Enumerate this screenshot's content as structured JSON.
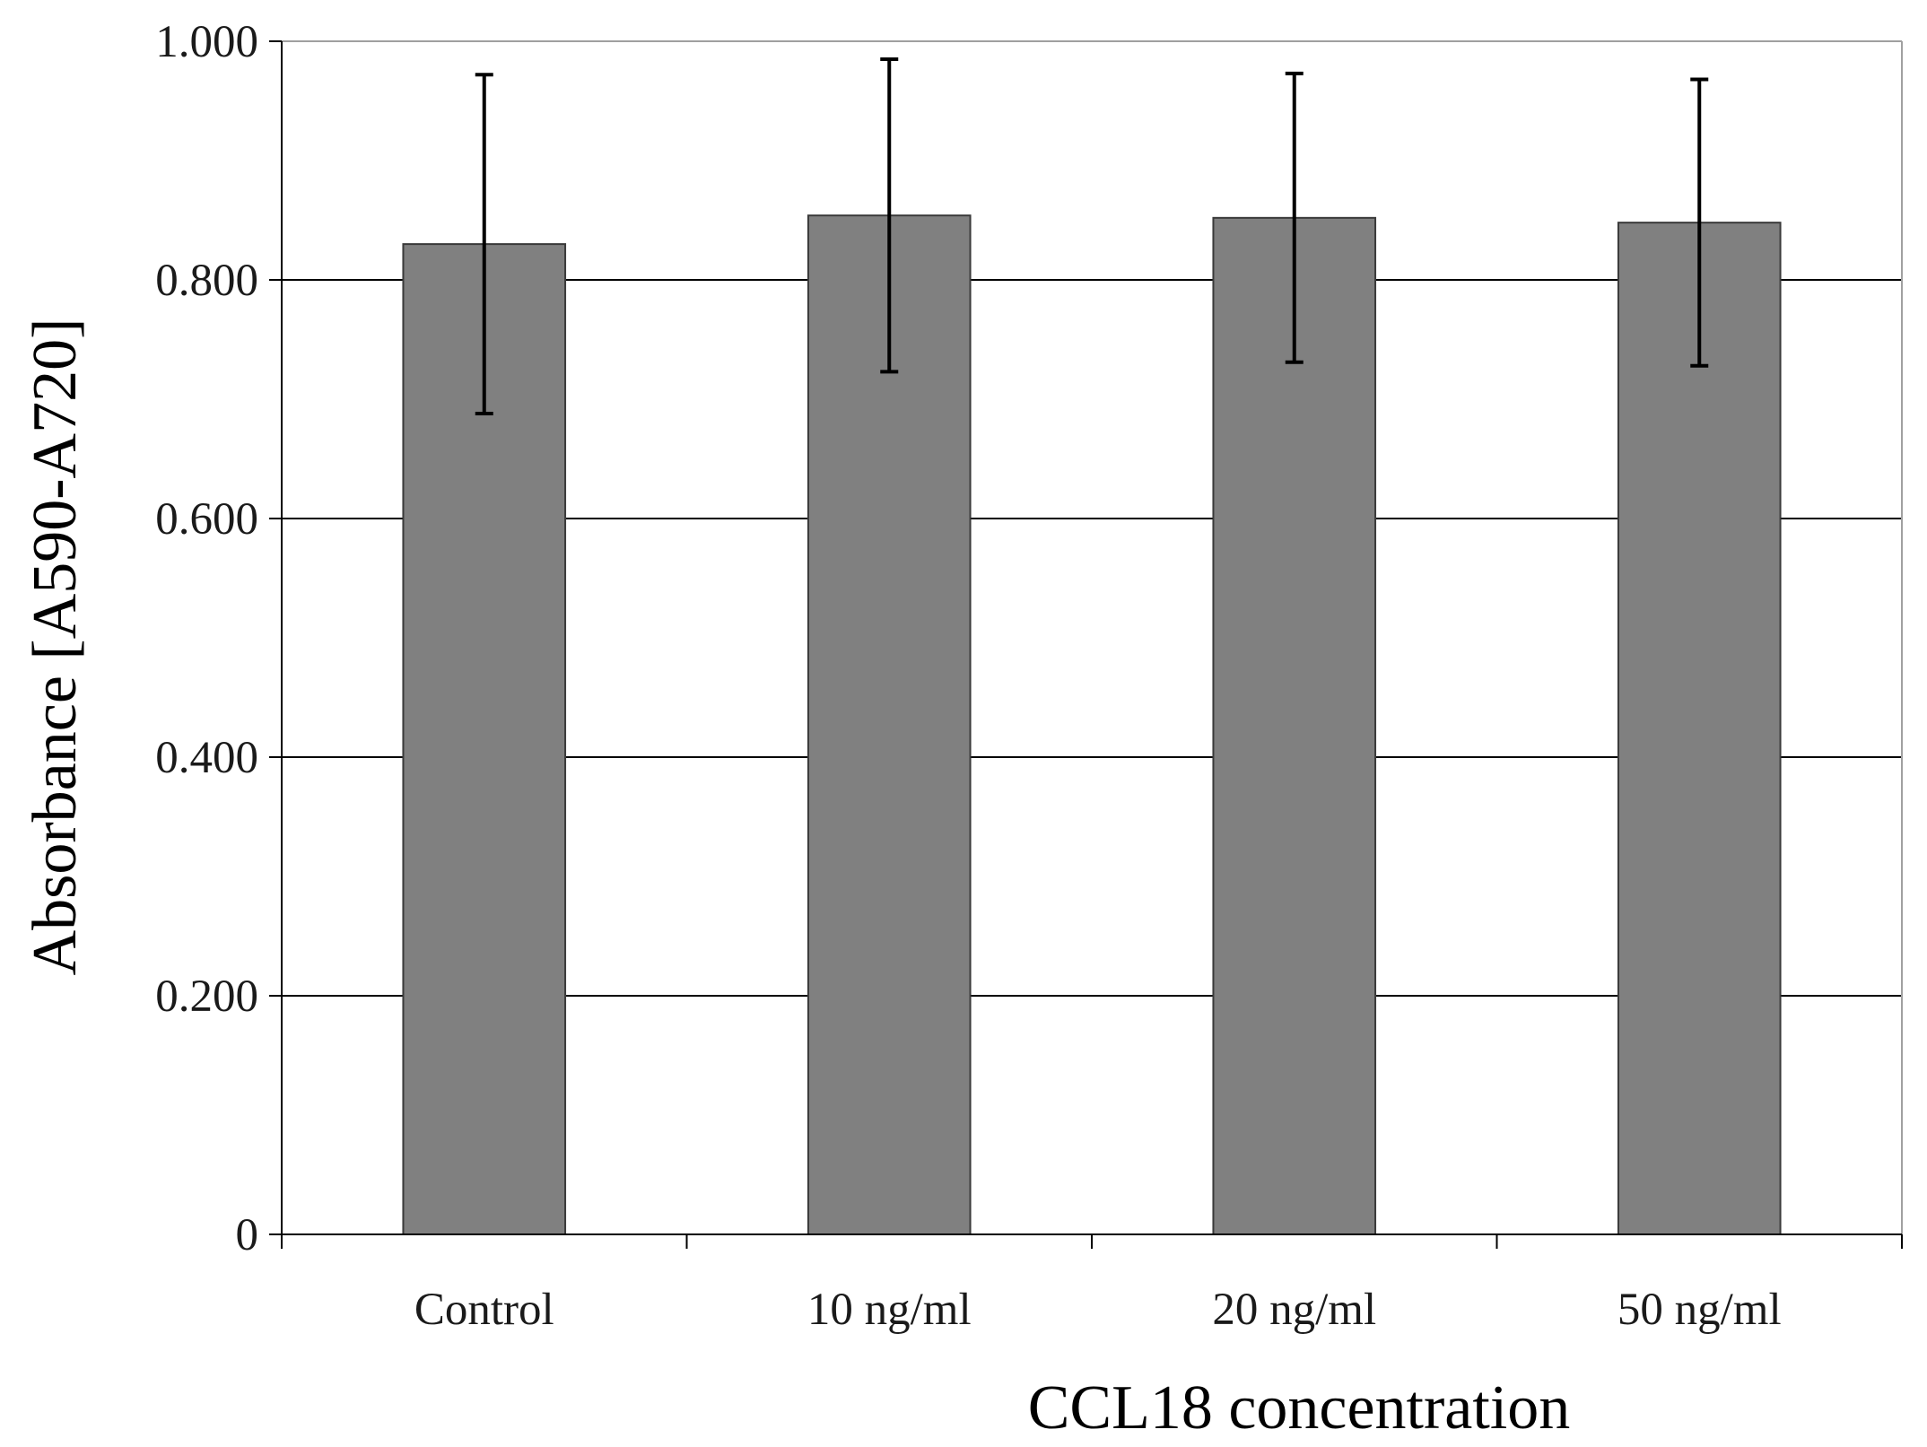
{
  "chart_data": {
    "type": "bar",
    "title": "",
    "xlabel": "CCL18 concentration",
    "ylabel": "Absorbance [A590-A720]",
    "categories": [
      "Control",
      "10 ng/ml",
      "20 ng/ml",
      "50 ng/ml"
    ],
    "values": [
      0.83,
      0.854,
      0.852,
      0.848
    ],
    "errors": [
      0.142,
      0.131,
      0.121,
      0.12
    ],
    "ylim": [
      0,
      1.0
    ],
    "yticks": [
      0,
      0.2,
      0.4,
      0.6,
      0.8,
      1.0
    ],
    "ytick_labels": [
      "0",
      "0.200",
      "0.400",
      "0.600",
      "0.800",
      "1.000"
    ],
    "grid": true,
    "legend": "none",
    "colors": {
      "bar": "#808080",
      "bar_edge": "#3a3a3a",
      "grid": "#000000",
      "axis": "#000000",
      "frame": "#a0a0a0",
      "error": "#000000"
    }
  }
}
